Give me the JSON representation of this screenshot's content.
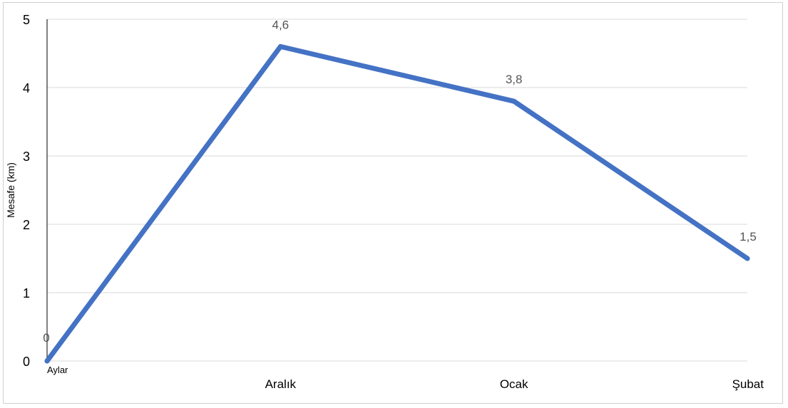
{
  "chart_data": {
    "type": "line",
    "categories": [
      "",
      "Aralık",
      "Ocak",
      "Şubat"
    ],
    "values": [
      0,
      4.6,
      3.8,
      1.5
    ],
    "data_labels": [
      "0",
      "4,6",
      "3,8",
      "1,5"
    ],
    "xlabel": "Aylar",
    "ylabel": "Mesafe (km)",
    "ylim": [
      0,
      5
    ],
    "yticks": [
      "0",
      "1",
      "2",
      "3",
      "4",
      "5"
    ],
    "grid": "horizontal",
    "line_color": "#4472c4"
  }
}
